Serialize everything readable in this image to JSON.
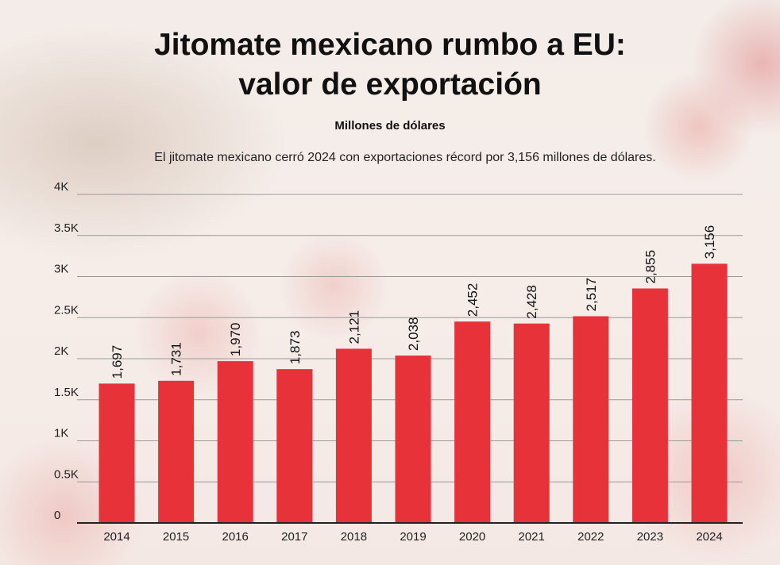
{
  "chart_data": {
    "type": "bar",
    "title_lines": [
      "Jitomate mexicano rumbo a EU:",
      "valor de exportación"
    ],
    "subtitle": "Millones de dólares",
    "caption": "El jitomate mexicano cerró 2024 con exportaciones récord por 3,156 millones de dólares.",
    "categories": [
      "2014",
      "2015",
      "2016",
      "2017",
      "2018",
      "2019",
      "2020",
      "2021",
      "2022",
      "2023",
      "2024"
    ],
    "values": [
      1697,
      1731,
      1970,
      1873,
      2121,
      2038,
      2452,
      2428,
      2517,
      2855,
      3156
    ],
    "value_labels": [
      "1,697",
      "1,731",
      "1,970",
      "1,873",
      "2,121",
      "2,038",
      "2,452",
      "2,428",
      "2,517",
      "2,855",
      "3,156"
    ],
    "y_ticks": [
      0,
      500,
      1000,
      1500,
      2000,
      2500,
      3000,
      3500,
      4000
    ],
    "y_tick_labels": [
      "0",
      "0.5K",
      "1K",
      "1.5K",
      "2K",
      "2.5K",
      "3K",
      "3.5K",
      "4K"
    ],
    "ylim": [
      0,
      4000
    ],
    "grid": true,
    "xlabel": "",
    "ylabel": "",
    "bar_color": "#e8323a"
  }
}
